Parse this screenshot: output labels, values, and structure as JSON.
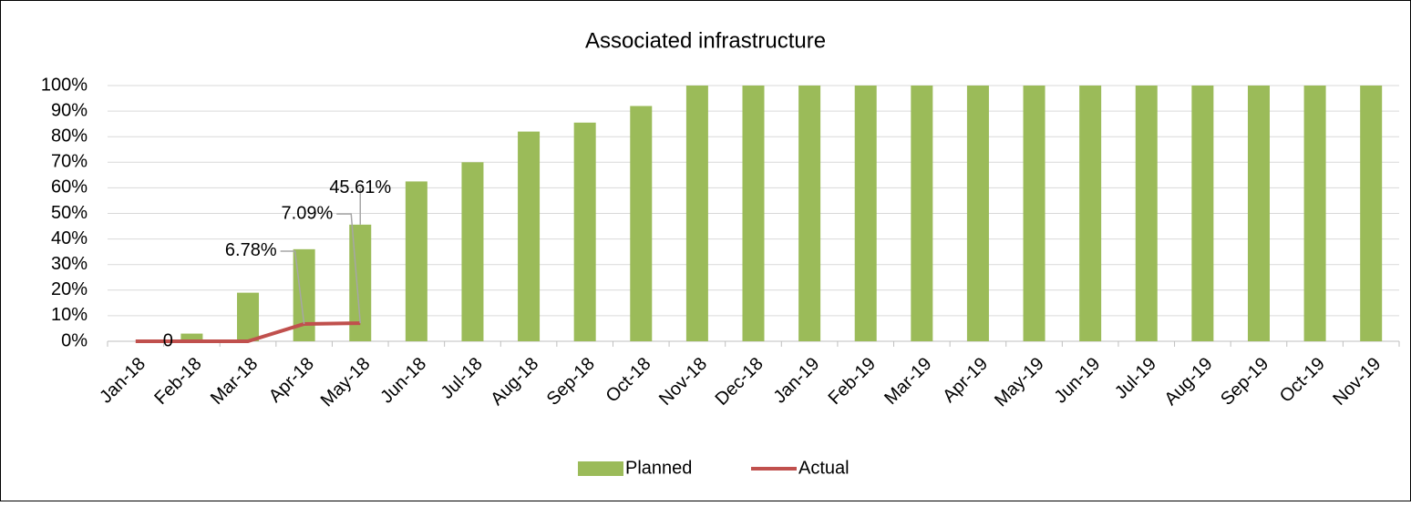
{
  "chart_data": {
    "type": "bar-line",
    "title": "Associated infrastructure",
    "categories": [
      "Jan-18",
      "Feb-18",
      "Mar-18",
      "Apr-18",
      "May-18",
      "Jun-18",
      "Jul-18",
      "Aug-18",
      "Sep-18",
      "Oct-18",
      "Nov-18",
      "Dec-18",
      "Jan-19",
      "Feb-19",
      "Mar-19",
      "Apr-19",
      "May-19",
      "Jun-19",
      "Jul-19",
      "Aug-19",
      "Sep-19",
      "Oct-19",
      "Nov-19"
    ],
    "series": [
      {
        "name": "Planned",
        "type": "bar",
        "color": "#9bbb59",
        "values": [
          0,
          3,
          19,
          36,
          45.61,
          62.5,
          70,
          82,
          85.5,
          92,
          100,
          100,
          100,
          100,
          100,
          100,
          100,
          100,
          100,
          100,
          100,
          100,
          100
        ],
        "value_labels": [
          null,
          null,
          null,
          null,
          "45.61%",
          null,
          null,
          null,
          null,
          null,
          null,
          null,
          null,
          null,
          null,
          null,
          null,
          null,
          null,
          null,
          null,
          null,
          null
        ]
      },
      {
        "name": "Actual",
        "type": "line",
        "color": "#c0504d",
        "values": [
          0,
          0,
          0,
          6.78,
          7.09,
          null,
          null,
          null,
          null,
          null,
          null,
          null,
          null,
          null,
          null,
          null,
          null,
          null,
          null,
          null,
          null,
          null,
          null
        ],
        "value_labels": [
          "0",
          null,
          null,
          "6.78%",
          "7.09%",
          null,
          null,
          null,
          null,
          null,
          null,
          null,
          null,
          null,
          null,
          null,
          null,
          null,
          null,
          null,
          null,
          null,
          null
        ]
      }
    ],
    "ylim": [
      0,
      100
    ],
    "yticks": [
      {
        "value": 0,
        "label": "0%"
      },
      {
        "value": 10,
        "label": "10%"
      },
      {
        "value": 20,
        "label": "20%"
      },
      {
        "value": 30,
        "label": "30%"
      },
      {
        "value": 40,
        "label": "40%"
      },
      {
        "value": 50,
        "label": "50%"
      },
      {
        "value": 60,
        "label": "60%"
      },
      {
        "value": 70,
        "label": "70%"
      },
      {
        "value": 80,
        "label": "80%"
      },
      {
        "value": 90,
        "label": "90%"
      },
      {
        "value": 100,
        "label": "100%"
      }
    ],
    "grid": true,
    "legend": "bottom"
  }
}
